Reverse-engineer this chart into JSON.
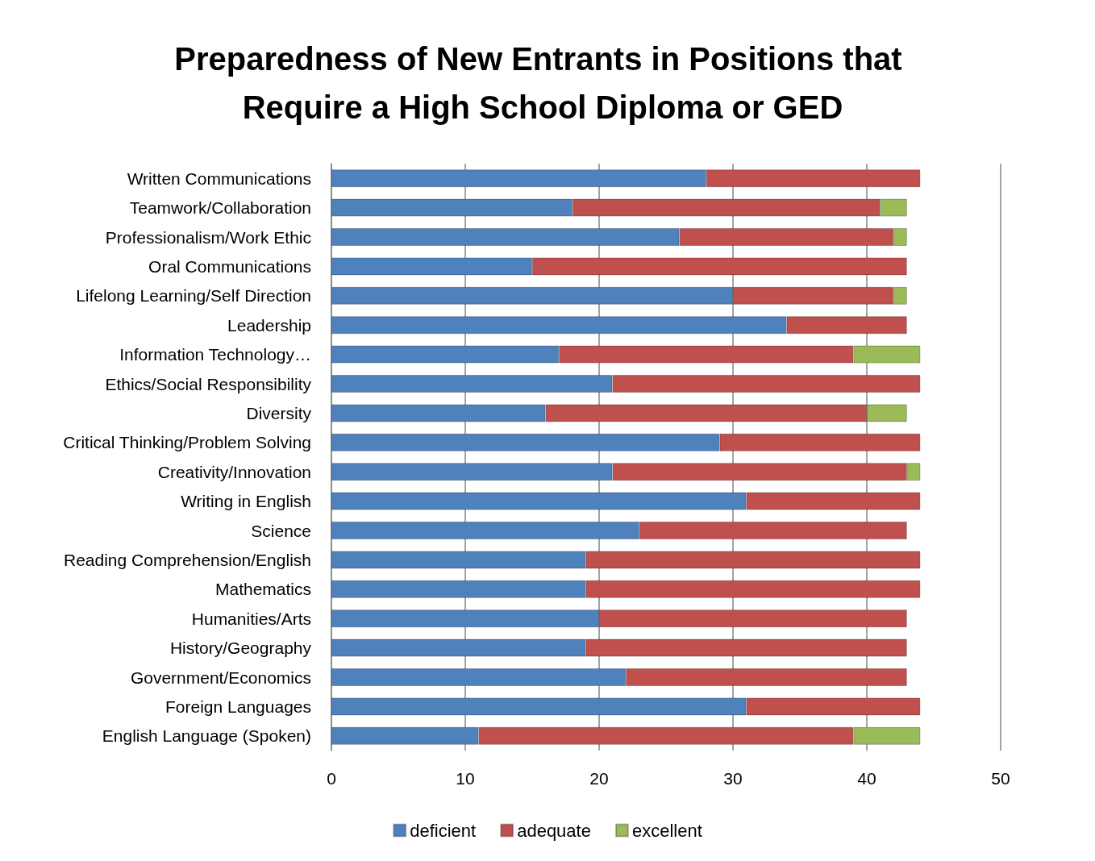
{
  "chart_data": {
    "type": "bar",
    "orientation": "horizontal",
    "stacked": true,
    "title": "Preparedness of New Entrants in Positions that Require a High School Diploma or GED",
    "categories": [
      "Written Communications",
      "Teamwork/Collaboration",
      "Professionalism/Work Ethic",
      "Oral Communications",
      "Lifelong Learning/Self Direction",
      "Leadership",
      "Information Technology…",
      "Ethics/Social Responsibility",
      "Diversity",
      "Critical Thinking/Problem Solving",
      "Creativity/Innovation",
      "Writing in English",
      "Science",
      "Reading Comprehension/English",
      "Mathematics",
      "Humanities/Arts",
      "History/Geography",
      "Government/Economics",
      "Foreign Languages",
      "English Language (Spoken)"
    ],
    "series": [
      {
        "name": "deficient",
        "color": "#4f81bd",
        "values": [
          28,
          18,
          26,
          15,
          30,
          34,
          17,
          21,
          16,
          29,
          21,
          31,
          23,
          19,
          19,
          20,
          19,
          22,
          31,
          11
        ]
      },
      {
        "name": "adequate",
        "color": "#c0504d",
        "values": [
          16,
          23,
          16,
          28,
          12,
          9,
          22,
          23,
          24,
          15,
          22,
          13,
          20,
          25,
          25,
          23,
          24,
          21,
          13,
          28
        ]
      },
      {
        "name": "excellent",
        "color": "#9bbb59",
        "values": [
          null,
          2,
          1,
          null,
          1,
          null,
          5,
          null,
          3,
          null,
          1,
          null,
          null,
          null,
          null,
          null,
          null,
          null,
          null,
          5
        ]
      }
    ],
    "xlim": [
      0,
      50
    ],
    "xticks": [
      0,
      10,
      20,
      30,
      40,
      50
    ],
    "grid": "x",
    "legend": "bottom"
  }
}
